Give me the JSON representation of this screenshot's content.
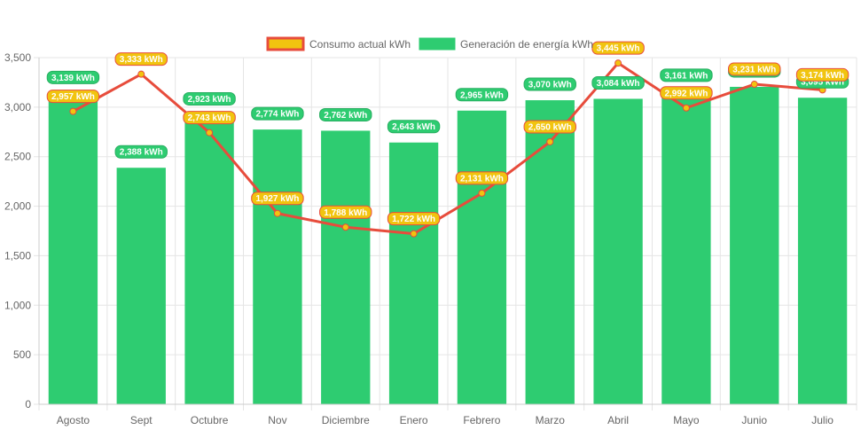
{
  "chart_data": {
    "type": "bar",
    "title": "",
    "xlabel": "",
    "ylabel": "",
    "ylim": [
      0,
      3500
    ],
    "y_ticks": [
      0,
      500,
      1000,
      1500,
      2000,
      2500,
      3000,
      3500
    ],
    "y_tick_labels": [
      "0",
      "500",
      "1,000",
      "1,500",
      "2,000",
      "2,500",
      "3,000",
      "3,500"
    ],
    "grid": true,
    "legend_position": "top",
    "categories": [
      "Agosto",
      "Sept",
      "Octubre",
      "Nov",
      "Diciembre",
      "Enero",
      "Febrero",
      "Marzo",
      "Abril",
      "Mayo",
      "Junio",
      "Julio"
    ],
    "series": [
      {
        "name": "Consumo actual kWh",
        "type": "line",
        "color": "#e74c3c",
        "point_color": "#f1c40f",
        "values": [
          2957,
          3333,
          2743,
          1927,
          1788,
          1722,
          2131,
          2650,
          3445,
          2992,
          3231,
          3174
        ],
        "labels": [
          "2,957 kWh",
          "3,333 kWh",
          "2,743 kWh",
          "1,927 kWh",
          "1,788 kWh",
          "1,722 kWh",
          "2,131 kWh",
          "2,650 kWh",
          "3,445 kWh",
          "2,992 kWh",
          "3,231 kWh",
          "3,174 kWh"
        ]
      },
      {
        "name": "Generación de energía kWh",
        "type": "bar",
        "color": "#2ecc71",
        "values": [
          3139,
          2388,
          2923,
          2774,
          2762,
          2643,
          2965,
          3070,
          3084,
          3161,
          3205,
          3095
        ],
        "labels": [
          "3,139 kWh",
          "2,388 kWh",
          "2,923 kWh",
          "2,774 kWh",
          "2,762 kWh",
          "2,643 kWh",
          "2,965 kWh",
          "3,070 kWh",
          "3,084 kWh",
          "3,161 kWh",
          "3,205 kWh",
          "3,095 kWh"
        ]
      }
    ]
  }
}
